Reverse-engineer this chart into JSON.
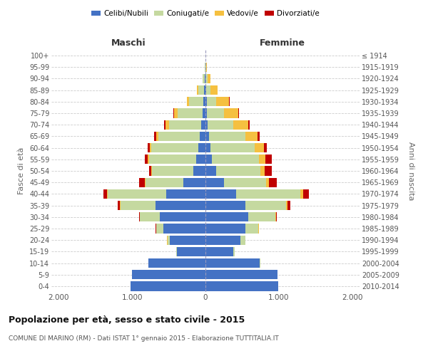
{
  "age_groups": [
    "0-4",
    "5-9",
    "10-14",
    "15-19",
    "20-24",
    "25-29",
    "30-34",
    "35-39",
    "40-44",
    "45-49",
    "50-54",
    "55-59",
    "60-64",
    "65-69",
    "70-74",
    "75-79",
    "80-84",
    "85-89",
    "90-94",
    "95-99",
    "100+"
  ],
  "birth_years": [
    "2010-2014",
    "2005-2009",
    "2000-2004",
    "1995-1999",
    "1990-1994",
    "1985-1989",
    "1980-1984",
    "1975-1979",
    "1970-1974",
    "1965-1969",
    "1960-1964",
    "1955-1959",
    "1950-1954",
    "1945-1949",
    "1940-1944",
    "1935-1939",
    "1930-1934",
    "1925-1929",
    "1920-1924",
    "1915-1919",
    "≤ 1914"
  ],
  "males": {
    "celibe": [
      1020,
      1000,
      780,
      390,
      490,
      570,
      620,
      680,
      530,
      300,
      170,
      130,
      100,
      80,
      60,
      40,
      25,
      15,
      5,
      2,
      0
    ],
    "coniugato": [
      5,
      5,
      2,
      10,
      30,
      100,
      270,
      480,
      800,
      520,
      560,
      640,
      640,
      560,
      440,
      340,
      200,
      80,
      30,
      10,
      2
    ],
    "vedovo": [
      0,
      0,
      0,
      0,
      2,
      2,
      2,
      5,
      10,
      10,
      10,
      20,
      20,
      30,
      40,
      50,
      30,
      20,
      5,
      2,
      0
    ],
    "divorziato": [
      0,
      0,
      0,
      0,
      2,
      5,
      15,
      30,
      50,
      70,
      30,
      40,
      30,
      30,
      20,
      5,
      0,
      0,
      0,
      0,
      0
    ]
  },
  "females": {
    "nubile": [
      990,
      980,
      740,
      380,
      480,
      540,
      580,
      540,
      420,
      250,
      150,
      90,
      70,
      50,
      30,
      20,
      15,
      10,
      3,
      2,
      0
    ],
    "coniugata": [
      5,
      5,
      5,
      20,
      60,
      180,
      370,
      560,
      870,
      580,
      600,
      640,
      600,
      490,
      350,
      230,
      130,
      60,
      25,
      10,
      2
    ],
    "vedova": [
      0,
      0,
      0,
      0,
      2,
      5,
      8,
      20,
      40,
      40,
      60,
      90,
      130,
      170,
      200,
      200,
      180,
      100,
      40,
      10,
      2
    ],
    "divorziata": [
      0,
      0,
      0,
      0,
      2,
      5,
      15,
      40,
      80,
      100,
      90,
      80,
      40,
      25,
      20,
      10,
      5,
      0,
      0,
      0,
      0
    ]
  },
  "colors": {
    "celibe": "#4472c4",
    "coniugato": "#c5d9a0",
    "vedovo": "#f5c040",
    "divorziato": "#c00000"
  },
  "xlim": 2100,
  "title": "Popolazione per età, sesso e stato civile - 2015",
  "subtitle": "COMUNE DI MARINO (RM) - Dati ISTAT 1° gennaio 2015 - Elaborazione TUTTITALIA.IT",
  "ylabel_left": "Fasce di età",
  "ylabel_right": "Anni di nascita",
  "xlabel_left": "Maschi",
  "xlabel_right": "Femmine",
  "bg_color": "#ffffff",
  "grid_color": "#cccccc"
}
